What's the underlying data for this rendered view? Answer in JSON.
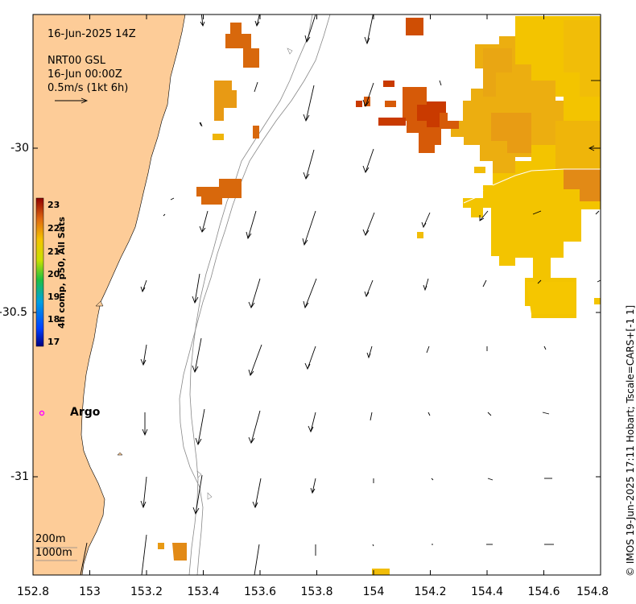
{
  "header": {
    "time": "16-Jun-2025 14Z",
    "product": "NRT00 GSL",
    "product_time": "16-Jun 00:00Z",
    "vector_scale": "0.5m/s (1kt 6h)"
  },
  "colorbar": {
    "title": "4h comp, p50, All Sats",
    "ticks": [
      "23",
      "22",
      "21",
      "20",
      "19",
      "18",
      "17"
    ]
  },
  "argo": {
    "label": "Argo",
    "color": "#ff00ff"
  },
  "isobaths": [
    "200m",
    "1000m"
  ],
  "credit": "© IMOS 19-Jun-2025 17:11 Hobart; Tscale=CARS+[-1 1]",
  "chart_data": {
    "type": "map",
    "xlabel": "",
    "ylabel": "",
    "xlim": [
      152.8,
      154.8
    ],
    "ylim": [
      -31.3,
      -29.6
    ],
    "x_ticks": [
      "152.8",
      "153",
      "153.2",
      "153.4",
      "153.6",
      "153.8",
      "154",
      "154.2",
      "154.4",
      "154.6",
      "154.8"
    ],
    "y_ticks": [
      "-30",
      "-30.5",
      "-31"
    ],
    "colors": {
      "land": "#fdcc98",
      "sst_warm": "#f5c400",
      "sst_hot": "#c62c00"
    }
  }
}
